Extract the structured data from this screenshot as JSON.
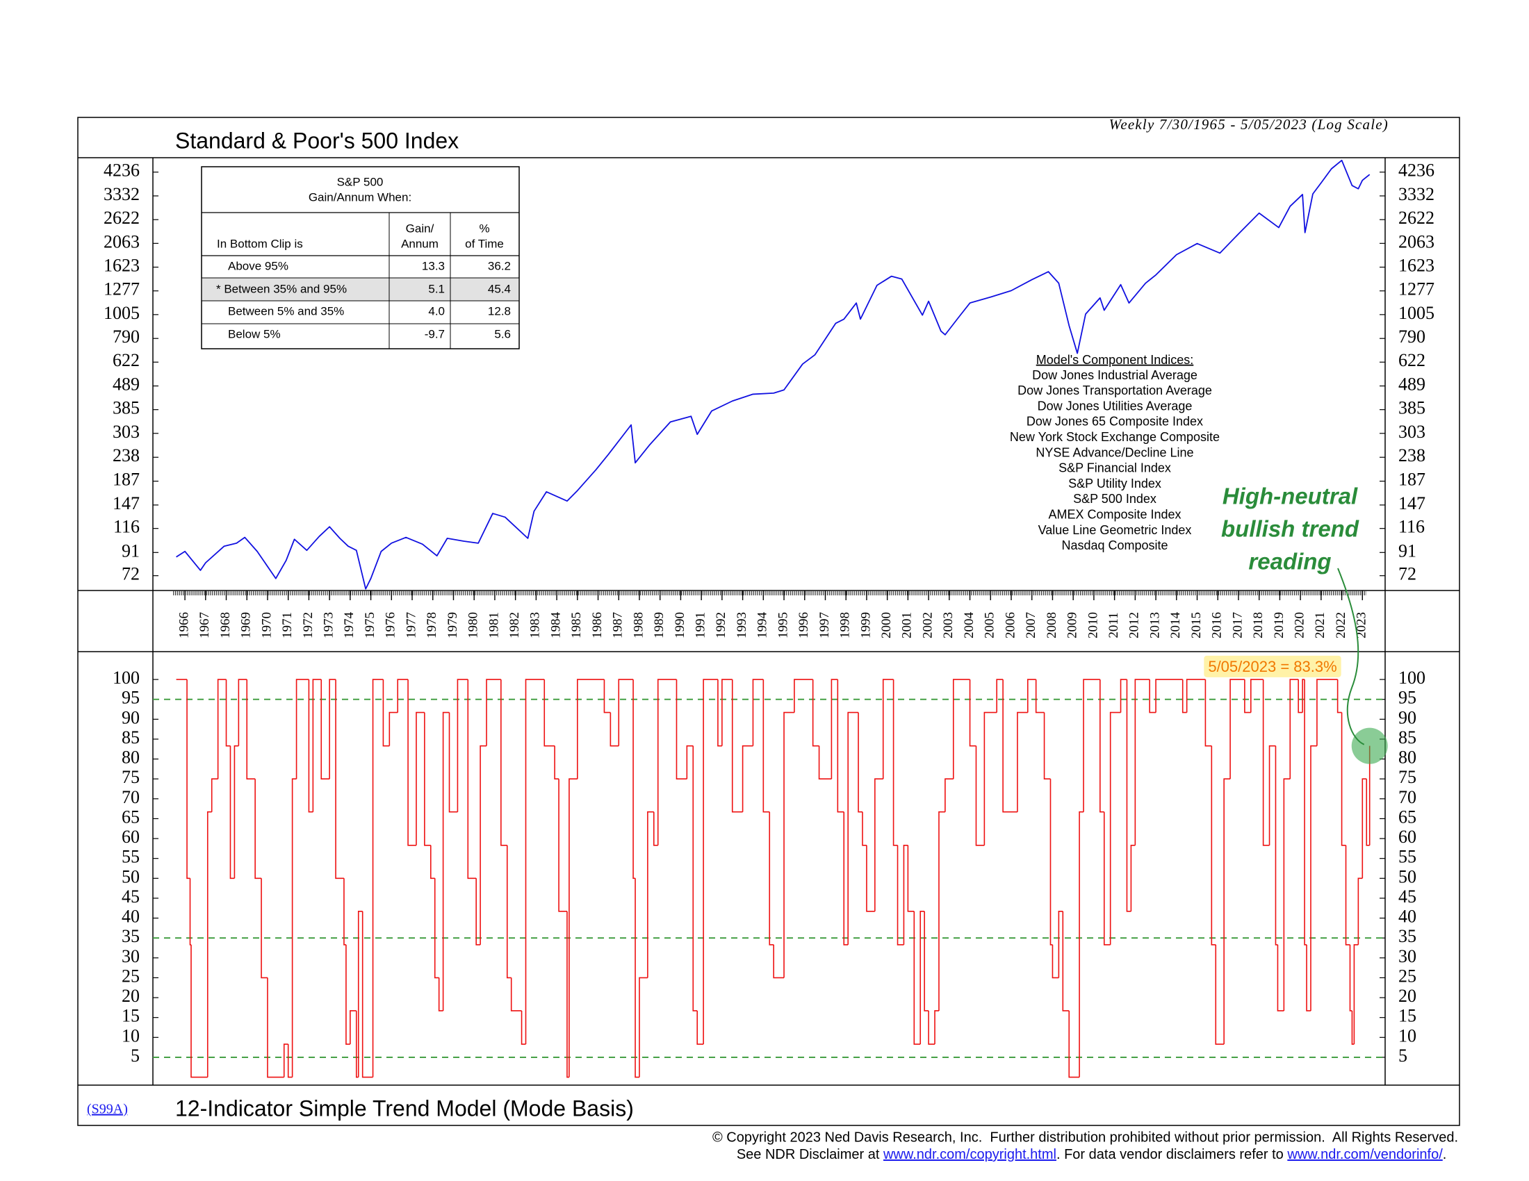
{
  "chart_data": [
    {
      "type": "line",
      "title": "Standard & Poor's 500 Index",
      "subtitle": "Weekly 7/30/1965 - 5/05/2023 (Log Scale)",
      "log_scale": true,
      "color": "#1010e0",
      "xlim": [
        1964.45,
        2024.1
      ],
      "xticks": [
        1966,
        1967,
        1968,
        1969,
        1970,
        1971,
        1972,
        1973,
        1974,
        1975,
        1976,
        1977,
        1978,
        1979,
        1980,
        1981,
        1982,
        1983,
        1984,
        1985,
        1986,
        1987,
        1988,
        1989,
        1990,
        1991,
        1992,
        1993,
        1994,
        1995,
        1996,
        1997,
        1998,
        1999,
        2000,
        2001,
        2002,
        2003,
        2004,
        2005,
        2006,
        2007,
        2008,
        2009,
        2010,
        2011,
        2012,
        2013,
        2014,
        2015,
        2016,
        2017,
        2018,
        2019,
        2020,
        2021,
        2022,
        2023
      ],
      "ylim": [
        62,
        4900
      ],
      "yticks": [
        72,
        91,
        116,
        147,
        187,
        238,
        303,
        385,
        489,
        622,
        790,
        1005,
        1277,
        1623,
        2063,
        2622,
        3332,
        4236
      ],
      "x": [
        1965.58,
        1966.0,
        1966.75,
        1967.0,
        1967.9,
        1968.5,
        1968.9,
        1969.5,
        1970.4,
        1970.9,
        1971.3,
        1971.9,
        1972.5,
        1973.0,
        1973.5,
        1973.9,
        1974.3,
        1974.75,
        1975.0,
        1975.5,
        1976.0,
        1976.7,
        1977.5,
        1978.2,
        1978.7,
        1979.5,
        1980.2,
        1980.9,
        1981.5,
        1982.6,
        1982.9,
        1983.5,
        1984.5,
        1985.0,
        1985.9,
        1986.5,
        1987.6,
        1987.8,
        1988.5,
        1989.5,
        1990.5,
        1990.8,
        1991.5,
        1992.5,
        1993.5,
        1994.5,
        1995.0,
        1995.9,
        1996.5,
        1997.5,
        1997.9,
        1998.5,
        1998.7,
        1999.5,
        2000.2,
        2000.7,
        2001.2,
        2001.7,
        2002.0,
        2002.6,
        2002.8,
        2003.5,
        2004.0,
        2005.0,
        2006.0,
        2007.0,
        2007.8,
        2008.3,
        2008.8,
        2009.2,
        2009.6,
        2010.3,
        2010.5,
        2011.3,
        2011.7,
        2012.5,
        2013.0,
        2014.0,
        2015.0,
        2016.1,
        2017.0,
        2018.0,
        2018.95,
        2019.5,
        2020.1,
        2020.22,
        2020.6,
        2021.0,
        2021.5,
        2022.0,
        2022.5,
        2022.8,
        2023.0,
        2023.35
      ],
      "values": [
        87,
        92,
        76,
        82,
        97,
        100,
        106,
        92,
        70,
        84,
        104,
        93,
        107,
        118,
        105,
        97,
        93,
        63,
        70,
        92,
        100,
        106,
        99,
        88,
        105,
        102,
        100,
        135,
        130,
        105,
        138,
        168,
        153,
        170,
        210,
        245,
        330,
        225,
        270,
        340,
        360,
        300,
        380,
        420,
        450,
        455,
        470,
        610,
        670,
        920,
        960,
        1130,
        960,
        1350,
        1480,
        1440,
        1200,
        1000,
        1150,
        850,
        820,
        990,
        1130,
        1200,
        1280,
        1430,
        1550,
        1380,
        900,
        680,
        1010,
        1190,
        1050,
        1360,
        1130,
        1380,
        1500,
        1840,
        2060,
        1870,
        2270,
        2800,
        2420,
        3000,
        3380,
        2300,
        3400,
        3800,
        4380,
        4770,
        3700,
        3580,
        3900,
        4136
      ]
    },
    {
      "type": "line",
      "step": true,
      "title": "12-Indicator Simple Trend Model (Mode Basis)",
      "code": "(S99A)",
      "color": "#ee1111",
      "xlim": [
        1964.45,
        2024.1
      ],
      "ylim": [
        -2,
        107
      ],
      "yticks": [
        5,
        10,
        15,
        20,
        25,
        30,
        35,
        40,
        45,
        50,
        55,
        60,
        65,
        70,
        75,
        80,
        85,
        90,
        95,
        100
      ],
      "reference_lines": [
        95,
        35,
        5
      ],
      "reference_color": "#3a9a3a",
      "x": [
        1965.58,
        1966.1,
        1966.25,
        1966.3,
        1967.1,
        1967.3,
        1967.6,
        1968.0,
        1968.2,
        1968.4,
        1968.6,
        1969.0,
        1969.4,
        1969.7,
        1970.0,
        1970.8,
        1971.0,
        1971.2,
        1971.4,
        1972.0,
        1972.2,
        1972.6,
        1973.0,
        1973.3,
        1973.7,
        1973.8,
        1974.0,
        1974.3,
        1974.4,
        1974.6,
        1975.1,
        1975.6,
        1975.9,
        1976.3,
        1976.8,
        1977.2,
        1977.6,
        1977.9,
        1978.1,
        1978.3,
        1978.5,
        1978.8,
        1979.2,
        1979.7,
        1980.1,
        1980.3,
        1980.6,
        1981.3,
        1981.6,
        1981.8,
        1982.3,
        1982.5,
        1983.4,
        1983.9,
        1984.1,
        1984.5,
        1984.6,
        1985.0,
        1986.3,
        1986.6,
        1987.0,
        1987.7,
        1987.8,
        1988.0,
        1988.4,
        1988.7,
        1988.9,
        1989.8,
        1990.3,
        1990.6,
        1990.8,
        1991.1,
        1991.8,
        1992.0,
        1992.5,
        1993.0,
        1993.5,
        1994.0,
        1994.3,
        1994.5,
        1995.0,
        1995.5,
        1996.4,
        1996.7,
        1997.3,
        1997.6,
        1997.9,
        1998.1,
        1998.6,
        1998.8,
        1999.0,
        1999.4,
        1999.8,
        2000.3,
        2000.5,
        2000.8,
        2001.0,
        2001.3,
        2001.6,
        2001.8,
        2002.0,
        2002.3,
        2002.5,
        2002.8,
        2003.2,
        2004.0,
        2004.3,
        2004.7,
        2005.3,
        2005.6,
        2006.3,
        2006.8,
        2007.2,
        2007.6,
        2007.9,
        2008.0,
        2008.3,
        2008.5,
        2008.8,
        2009.3,
        2009.5,
        2010.3,
        2010.5,
        2010.8,
        2011.3,
        2011.6,
        2011.8,
        2012.0,
        2012.7,
        2013.0,
        2014.3,
        2014.5,
        2015.4,
        2015.7,
        2015.9,
        2016.3,
        2016.6,
        2017.3,
        2017.6,
        2018.2,
        2018.5,
        2018.8,
        2018.9,
        2019.2,
        2019.5,
        2019.9,
        2020.1,
        2020.2,
        2020.3,
        2020.5,
        2020.8,
        2021.8,
        2022.0,
        2022.2,
        2022.4,
        2022.5,
        2022.6,
        2022.8,
        2023.0,
        2023.2,
        2023.35
      ],
      "values": [
        100,
        50,
        33.3,
        0,
        66.7,
        75,
        100,
        83.3,
        50,
        83.3,
        100,
        75,
        50,
        25,
        0,
        8.3,
        0,
        75,
        100,
        66.7,
        100,
        75,
        100,
        50,
        33.3,
        8.3,
        16.7,
        0,
        41.7,
        0,
        100,
        83.3,
        91.7,
        100,
        58.3,
        91.7,
        58.3,
        50,
        25,
        16.7,
        91.7,
        66.7,
        100,
        50,
        33.3,
        83.3,
        100,
        58.3,
        25,
        16.7,
        8.3,
        100,
        83.3,
        75,
        41.7,
        0,
        75,
        100,
        91.7,
        83.3,
        100,
        50,
        0,
        25,
        66.7,
        58.3,
        100,
        75,
        83.3,
        16.7,
        8.3,
        100,
        83.3,
        100,
        66.7,
        83.3,
        100,
        66.7,
        33.3,
        25,
        91.7,
        100,
        83.3,
        75,
        100,
        66.7,
        33.3,
        91.7,
        66.7,
        58.3,
        41.7,
        75,
        100,
        58.3,
        33.3,
        58.3,
        41.7,
        8.3,
        41.7,
        16.7,
        8.3,
        16.7,
        66.7,
        75,
        100,
        83.3,
        58.3,
        91.7,
        100,
        66.7,
        91.7,
        100,
        91.7,
        75,
        33.3,
        25,
        41.7,
        16.7,
        0,
        66.7,
        100,
        66.7,
        33.3,
        91.7,
        100,
        41.7,
        58.3,
        100,
        91.7,
        100,
        91.7,
        100,
        83.3,
        33.3,
        8.3,
        75,
        100,
        91.7,
        100,
        58.3,
        83.3,
        33.3,
        16.7,
        75,
        100,
        91.7,
        100,
        33.3,
        16.7,
        83.3,
        100,
        91.7,
        58.3,
        33.3,
        16.7,
        8.3,
        33.3,
        50,
        75,
        58.3,
        83.3
      ],
      "value_label": "5/05/2023 = 83.3%",
      "callout": [
        "High-neutral",
        "bullish trend",
        "reading"
      ],
      "callout_color": "#2a8c3a"
    }
  ],
  "table": {
    "title": [
      "S&P 500",
      "Gain/Annum When:"
    ],
    "header": [
      "In Bottom Clip is",
      [
        "Gain/",
        "Annum"
      ],
      [
        "%",
        "of Time"
      ]
    ],
    "highlight_row": 1,
    "rows": [
      [
        "Above 95%",
        "13.3",
        "36.2"
      ],
      [
        "* Between 35% and 95%",
        "5.1",
        "45.4"
      ],
      [
        "Between 5% and 35%",
        "4.0",
        "12.8"
      ],
      [
        "Below 5%",
        "-9.7",
        "5.6"
      ]
    ]
  },
  "components": {
    "title": "Model's Component Indices:",
    "items": [
      "Dow Jones Industrial Average",
      "Dow Jones Transportation Average",
      "Dow Jones Utilities Average",
      "Dow Jones 65 Composite Index",
      "New York Stock Exchange Composite",
      "NYSE Advance/Decline Line",
      "S&P Financial Index",
      "S&P Utility Index",
      "S&P 500 Index",
      "AMEX Composite Index",
      "Value Line Geometric Index",
      "Nasdaq Composite"
    ]
  },
  "footer": {
    "line1": "© Copyright 2023 Ned Davis Research, Inc.  Further distribution prohibited without prior permission.  All Rights Reserved.",
    "line2": [
      "See NDR Disclaimer at ",
      "www.ndr.com/copyright.html",
      ". For data vendor disclaimers refer to ",
      "www.ndr.com/vendorinfo/",
      "."
    ]
  }
}
